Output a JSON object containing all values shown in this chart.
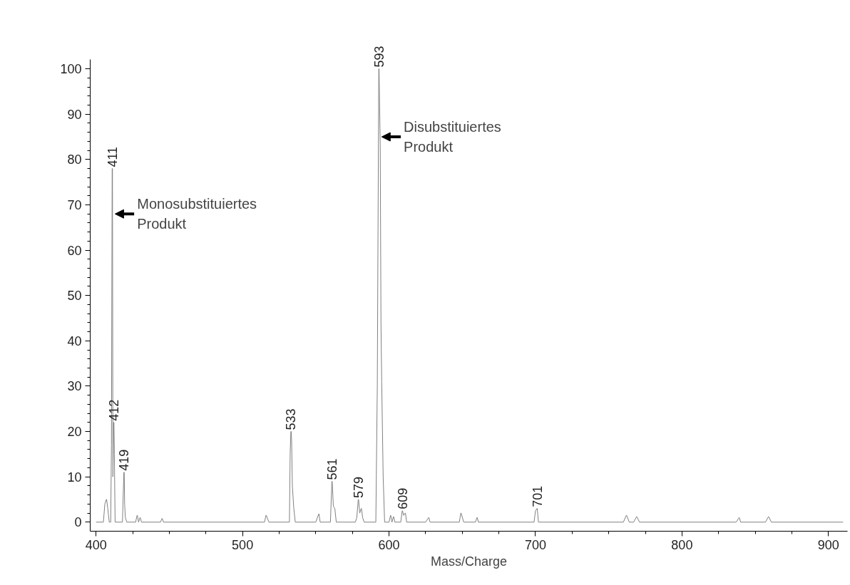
{
  "chart_data": {
    "type": "line",
    "xlabel": "Mass/Charge",
    "x": [
      400,
      405,
      406,
      407,
      407.2,
      408,
      409,
      410,
      410.5,
      411,
      411.2,
      411.5,
      412,
      412.2,
      412.5,
      413,
      418,
      419,
      419.2,
      419.5,
      420,
      421,
      427,
      428,
      428.2,
      429,
      430,
      430.2,
      431,
      444,
      445,
      445.2,
      446,
      515,
      516,
      516.2,
      518,
      532,
      532.5,
      533,
      533.2,
      533.5,
      534,
      535,
      536,
      550,
      552,
      552.2,
      553,
      560,
      561,
      561.2,
      562,
      563,
      564,
      577,
      578,
      579,
      579.2,
      580,
      581,
      581.2,
      582,
      583,
      591,
      592,
      593,
      593.2,
      594,
      594.5,
      595,
      596,
      597,
      600,
      601,
      601.2,
      602,
      603,
      603.2,
      604,
      608,
      609,
      609.2,
      610,
      611,
      611.2,
      612,
      625,
      627,
      627.2,
      628,
      648,
      649,
      649.2,
      651,
      659,
      660,
      660.2,
      661,
      699,
      700,
      701,
      701.2,
      702,
      760,
      762,
      762.2,
      764,
      767,
      769,
      769.2,
      771,
      837,
      839,
      839.2,
      840,
      857,
      859,
      859.2,
      861,
      910
    ],
    "series": [
      {
        "color": "#808080",
        "values": [
          0,
          0,
          4,
          5,
          5,
          3,
          0,
          0,
          17,
          78,
          78,
          10,
          22,
          22,
          15,
          0,
          0,
          11,
          11,
          4,
          1,
          0,
          0,
          1.5,
          1.5,
          0,
          1,
          1,
          0,
          0,
          0.8,
          0.8,
          0,
          0,
          1.5,
          1.5,
          0,
          0,
          15,
          20,
          20,
          18,
          8,
          3,
          0,
          0,
          1.8,
          1.8,
          0,
          0,
          9,
          9,
          3.5,
          3,
          0,
          0,
          1,
          5,
          5,
          2,
          3,
          3,
          1,
          0,
          0,
          30,
          100,
          100,
          83,
          44,
          31,
          10,
          0,
          0,
          1.5,
          1.5,
          0,
          1.2,
          1.2,
          0,
          0,
          2.5,
          2.5,
          1.5,
          2,
          2,
          0,
          0,
          1,
          1,
          0,
          0,
          2,
          2,
          0,
          0,
          1,
          1,
          0,
          0,
          2.5,
          3,
          3,
          0,
          0,
          1.5,
          1.5,
          0,
          0,
          1.2,
          1.2,
          0,
          0,
          1,
          1,
          0,
          0,
          1.2,
          1.2,
          0,
          0
        ]
      }
    ],
    "xlim": [
      396,
      913
    ],
    "ylim": [
      -2,
      102
    ],
    "xticks": [
      400,
      500,
      600,
      700,
      800,
      900
    ],
    "yticks": [
      0,
      10,
      20,
      30,
      40,
      50,
      60,
      70,
      80,
      90,
      100
    ],
    "grid": false,
    "marker": "none",
    "line_style": "solid",
    "annotations": [
      {
        "text": "411",
        "x": 411,
        "y": 78
      },
      {
        "text": "412",
        "x": 412,
        "y": 22
      },
      {
        "text": "419",
        "x": 419,
        "y": 11
      },
      {
        "text": "533",
        "x": 533,
        "y": 20
      },
      {
        "text": "561",
        "x": 561,
        "y": 9
      },
      {
        "text": "579",
        "x": 579,
        "y": 5
      },
      {
        "text": "593",
        "x": 593,
        "y": 100
      },
      {
        "text": "609",
        "x": 609,
        "y": 2.5
      },
      {
        "text": "701",
        "x": 701,
        "y": 3
      },
      {
        "text": "Monosubstituiertes\nProdukt",
        "x": 411,
        "y": 68
      },
      {
        "text": "Disubstituiertes\nProdukt",
        "x": 593,
        "y": 85
      }
    ]
  }
}
